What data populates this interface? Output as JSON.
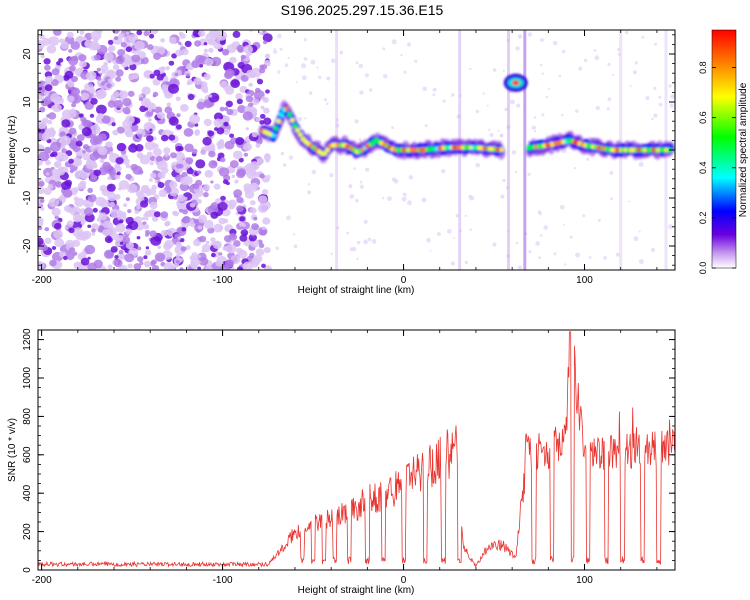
{
  "title": "S196.2025.297.15.36.E15",
  "colors": {
    "snr_line": "#e8332e",
    "background": "#ffffff",
    "axis": "#000000"
  },
  "chart_data": [
    {
      "type": "heatmap",
      "xlabel": "Height of straight line (km)",
      "ylabel": "Frequency (Hz)",
      "xlim": [
        -202,
        150
      ],
      "ylim": [
        -25,
        25
      ],
      "xticks": [
        "-200",
        "-100",
        "0",
        "100"
      ],
      "yticks": [
        "-20",
        "-10",
        "0",
        "10",
        "20"
      ],
      "colorbar": {
        "label": "Normalized spectral amplitude",
        "range": [
          0,
          0.95
        ],
        "ticks": [
          "0.0",
          "0.2",
          "0.4",
          "0.6",
          "0.8"
        ],
        "colormap": [
          "#ffffff",
          "#8a2be2",
          "#0000ff",
          "#00ffff",
          "#00ff00",
          "#ffff00",
          "#ff8000",
          "#ff0000"
        ]
      },
      "ridge": [
        {
          "x": -78,
          "y": 4
        },
        {
          "x": -72,
          "y": 3
        },
        {
          "x": -68,
          "y": 7
        },
        {
          "x": -65,
          "y": 9
        },
        {
          "x": -60,
          "y": 5
        },
        {
          "x": -55,
          "y": 2
        },
        {
          "x": -48,
          "y": 0
        },
        {
          "x": -44,
          "y": -1
        },
        {
          "x": -40,
          "y": 1
        },
        {
          "x": -32,
          "y": 1
        },
        {
          "x": -25,
          "y": -0.5
        },
        {
          "x": -15,
          "y": 2
        },
        {
          "x": -5,
          "y": 0
        },
        {
          "x": 10,
          "y": 0
        },
        {
          "x": 25,
          "y": 0.5
        },
        {
          "x": 40,
          "y": 0.5
        },
        {
          "x": 55,
          "y": 0
        },
        {
          "x": 70,
          "y": 0.5
        },
        {
          "x": 80,
          "y": 1
        },
        {
          "x": 92,
          "y": 2
        },
        {
          "x": 100,
          "y": 1
        },
        {
          "x": 115,
          "y": 0
        },
        {
          "x": 130,
          "y": 0
        },
        {
          "x": 148,
          "y": 0
        }
      ],
      "annotations": [
        {
          "x": 62,
          "y": 14,
          "text": ""
        }
      ]
    },
    {
      "type": "line",
      "xlabel": "Height of straight line (km)",
      "ylabel": "SNR (10 * v/v)",
      "xlim": [
        -202,
        150
      ],
      "ylim": [
        0,
        1250
      ],
      "xticks": [
        "-200",
        "-100",
        "0",
        "100"
      ],
      "yticks": [
        "0",
        "200",
        "400",
        "600",
        "800",
        "1000",
        "1200"
      ],
      "series": [
        {
          "values_approx": [
            [
              -200,
              30
            ],
            [
              -150,
              30
            ],
            [
              -100,
              30
            ],
            [
              -75,
              30
            ],
            [
              -65,
              130
            ],
            [
              -60,
              200
            ],
            [
              -50,
              240
            ],
            [
              -40,
              270
            ],
            [
              -30,
              300
            ],
            [
              -20,
              360
            ],
            [
              -10,
              400
            ],
            [
              0,
              450
            ],
            [
              10,
              520
            ],
            [
              20,
              580
            ],
            [
              30,
              630
            ],
            [
              33,
              120
            ],
            [
              40,
              20
            ],
            [
              47,
              130
            ],
            [
              55,
              130
            ],
            [
              62,
              60
            ],
            [
              68,
              620
            ],
            [
              80,
              620
            ],
            [
              90,
              700
            ],
            [
              92,
              1240
            ],
            [
              100,
              600
            ],
            [
              120,
              620
            ],
            [
              140,
              630
            ],
            [
              150,
              640
            ]
          ],
          "dips": [
            -56,
            -50,
            -44,
            -38,
            -30,
            -20,
            -11,
            0,
            12,
            22,
            31,
            72,
            82,
            93,
            102,
            112,
            121,
            132,
            141
          ]
        }
      ]
    }
  ]
}
